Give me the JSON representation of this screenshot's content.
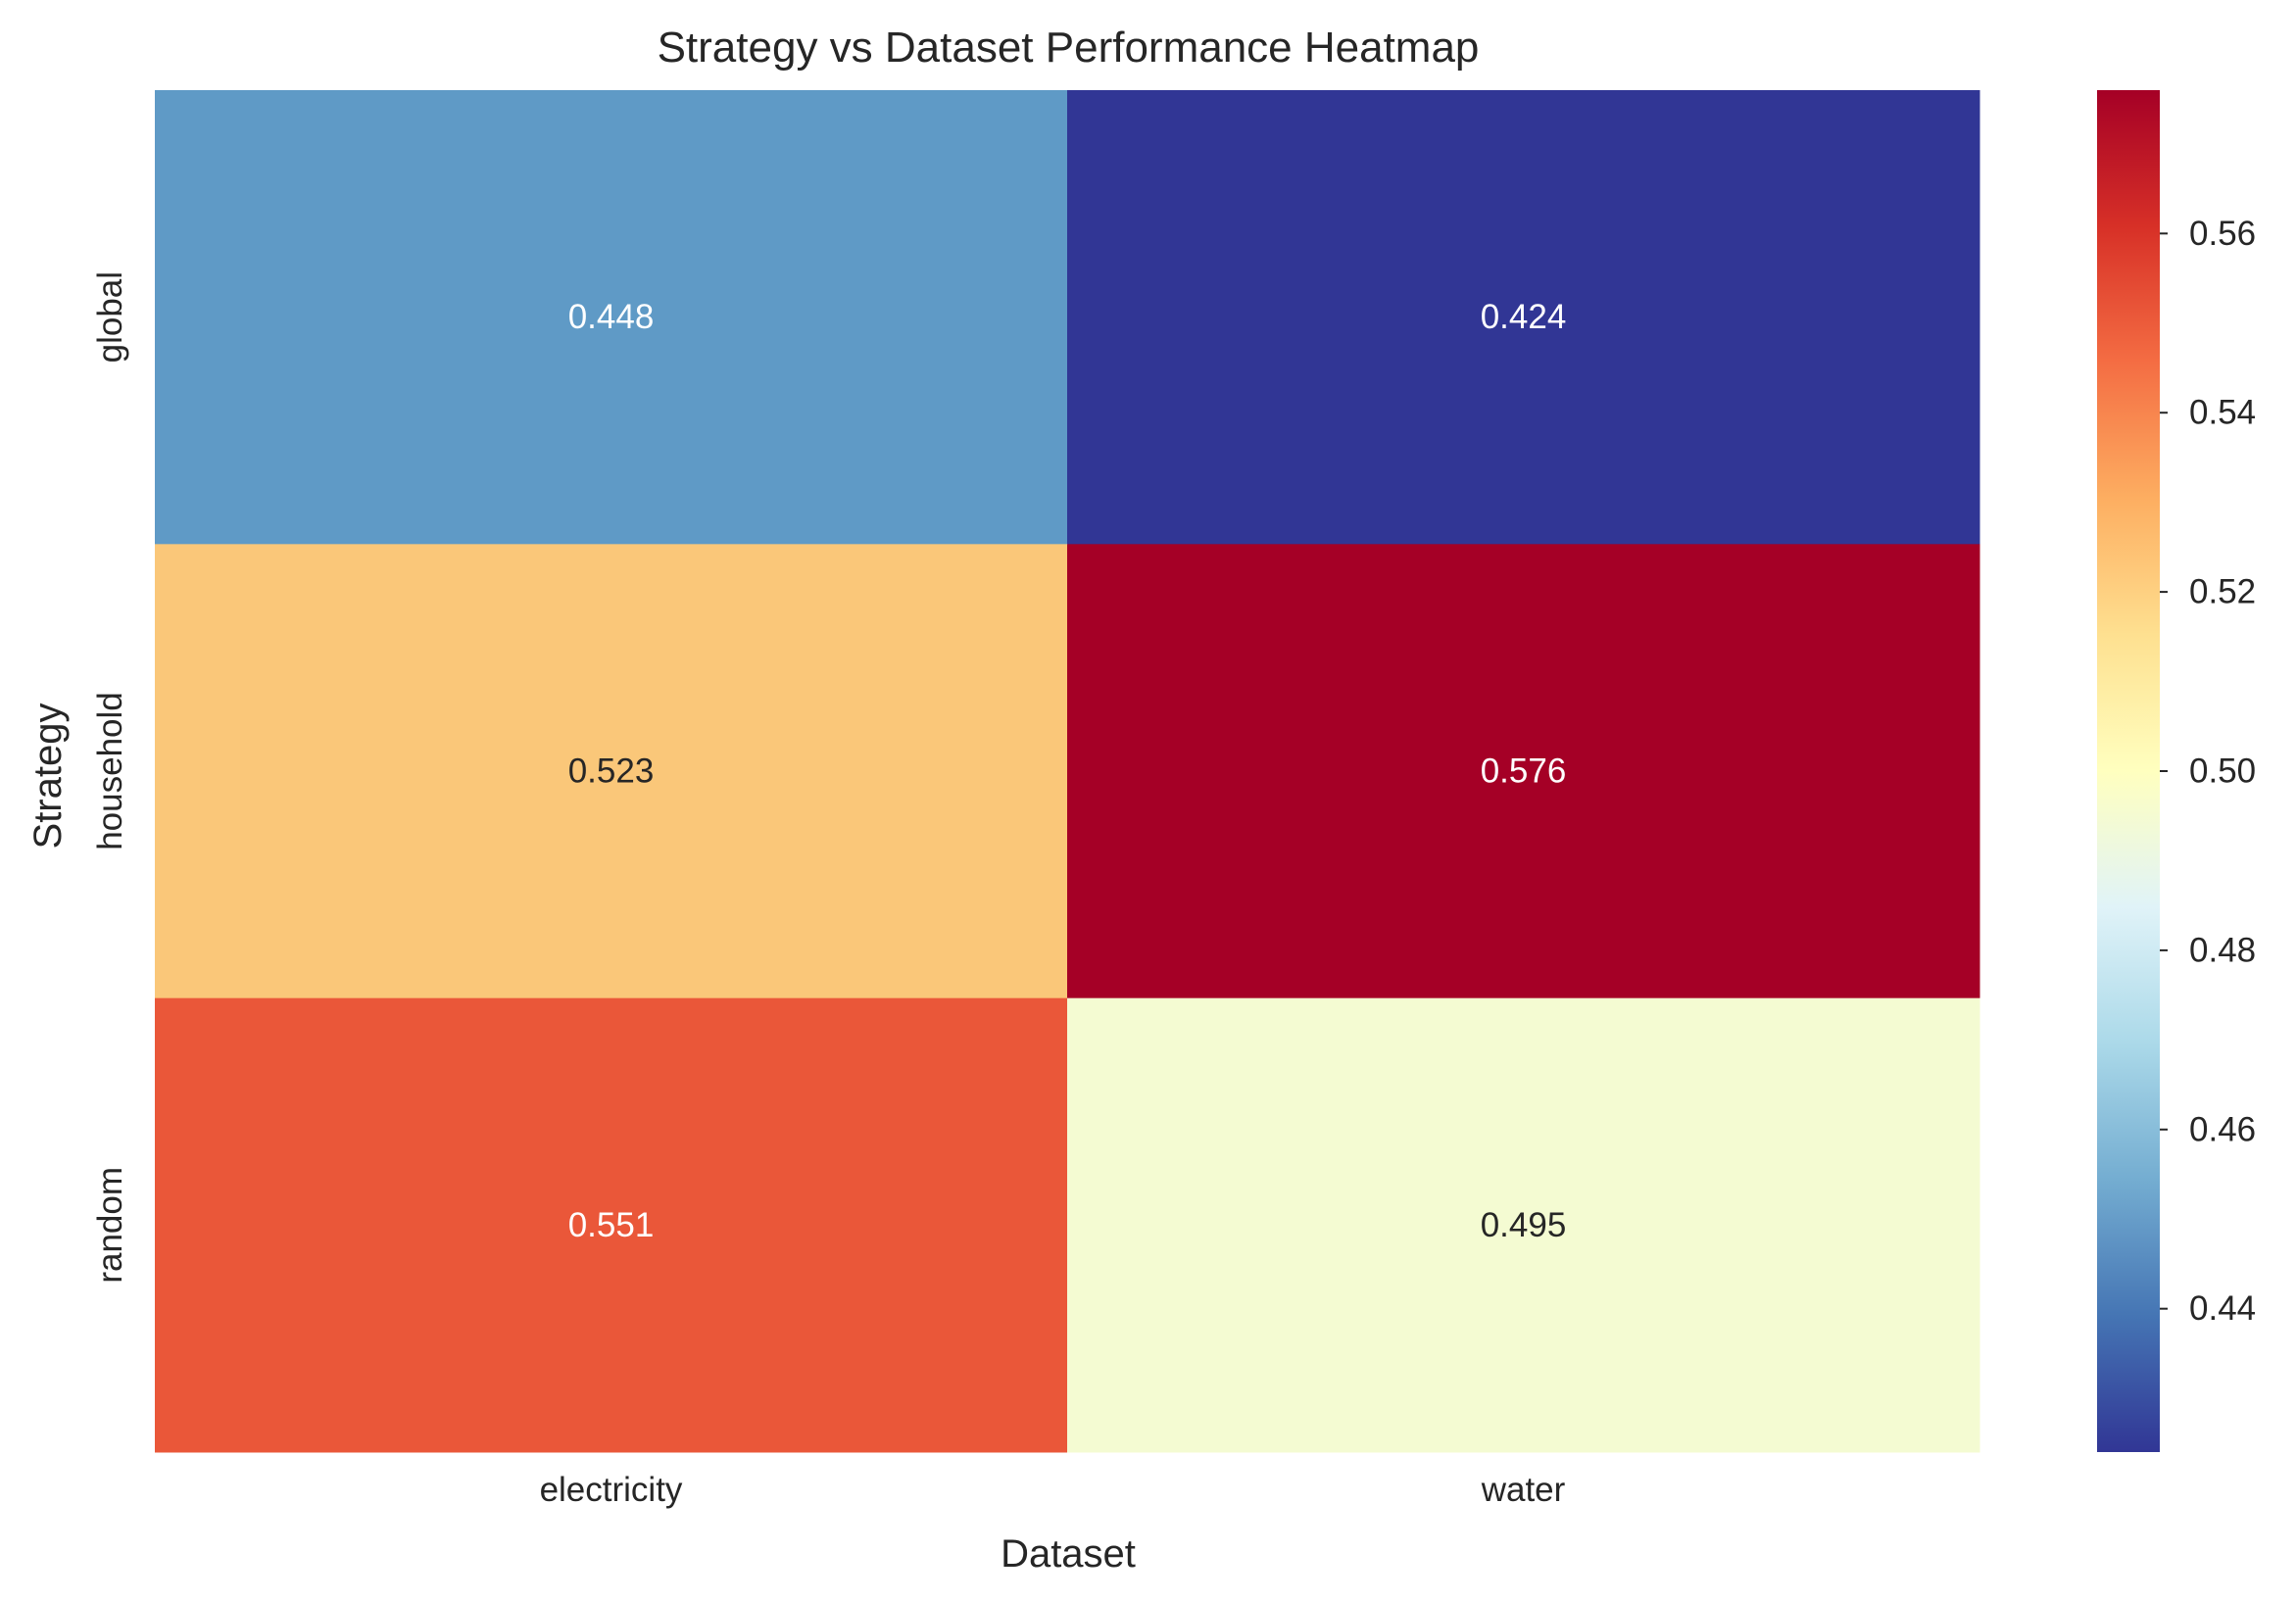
{
  "chart_data": {
    "type": "heatmap",
    "title": "Strategy vs Dataset Performance Heatmap",
    "xlabel": "Dataset",
    "ylabel": "Strategy",
    "x_categories": [
      "electricity",
      "water"
    ],
    "y_categories": [
      "global",
      "household",
      "random"
    ],
    "values": [
      [
        0.448,
        0.424
      ],
      [
        0.523,
        0.576
      ],
      [
        0.551,
        0.495
      ]
    ],
    "value_labels": [
      [
        "0.448",
        "0.424"
      ],
      [
        "0.523",
        "0.576"
      ],
      [
        "0.551",
        "0.495"
      ]
    ],
    "cell_colors": [
      [
        "#5f9ac6",
        "#313695"
      ],
      [
        "#fac779",
        "#a50026"
      ],
      [
        "#ea5739",
        "#f4fbd2"
      ]
    ],
    "label_colors": [
      [
        "#ffffff",
        "#ffffff"
      ],
      [
        "#262626",
        "#ffffff"
      ],
      [
        "#ffffff",
        "#262626"
      ]
    ],
    "colormap": "RdYlBu_r",
    "colorbar": {
      "vmin": 0.424,
      "vmax": 0.576,
      "ticks": [
        0.44,
        0.46,
        0.48,
        0.5,
        0.52,
        0.54,
        0.56
      ],
      "tick_labels": [
        "0.44",
        "0.46",
        "0.48",
        "0.50",
        "0.52",
        "0.54",
        "0.56"
      ],
      "colors": [
        "#313695",
        "#4575b4",
        "#74add1",
        "#abd9e9",
        "#e0f3f8",
        "#ffffbf",
        "#fee090",
        "#fdae61",
        "#f46d43",
        "#d73027",
        "#a50026"
      ]
    }
  }
}
